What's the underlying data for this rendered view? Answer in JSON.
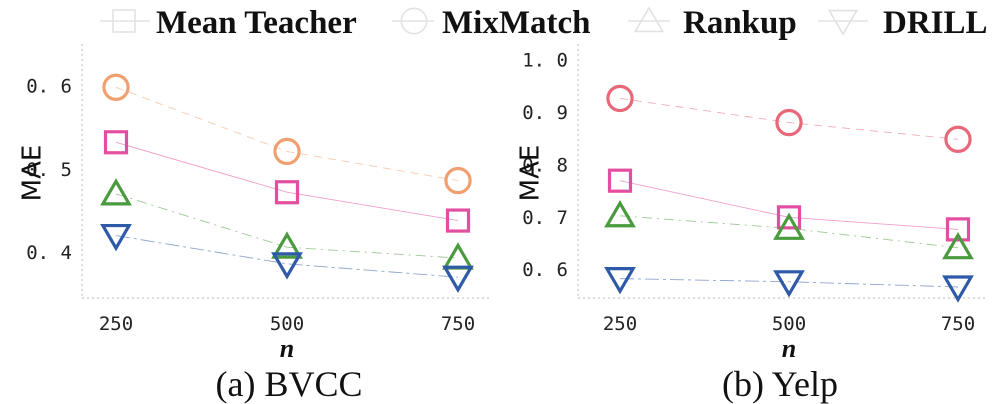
{
  "legend": [
    {
      "label": "Mean Teacher",
      "marker": "square"
    },
    {
      "label": "MixMatch",
      "marker": "circle"
    },
    {
      "label": "Rankup",
      "marker": "triangle-up"
    },
    {
      "label": "DRILL",
      "marker": "triangle-down"
    }
  ],
  "colors": {
    "Mean Teacher": "#e34fa0",
    "MixMatch": "#f0a070",
    "MixMatch_yelp": "#e8687a",
    "Rankup": "#4a9a3e",
    "DRILL": "#2f5aa8"
  },
  "chart_data": [
    {
      "type": "scatter",
      "caption": "(a) BVCC",
      "xlabel": "n",
      "ylabel": "MAE",
      "x": [
        250,
        500,
        750
      ],
      "ylim": [
        0.345,
        0.65
      ],
      "yticks": [
        "0.4",
        "0.5",
        "0.6"
      ],
      "xticks": [
        "250",
        "500",
        "750"
      ],
      "series": [
        {
          "name": "Mean Teacher",
          "marker": "square",
          "values": [
            0.532,
            0.472,
            0.438
          ]
        },
        {
          "name": "MixMatch",
          "marker": "circle",
          "values": [
            0.598,
            0.521,
            0.486
          ]
        },
        {
          "name": "Rankup",
          "marker": "triangle-up",
          "values": [
            0.47,
            0.406,
            0.393
          ]
        },
        {
          "name": "DRILL",
          "marker": "triangle-down",
          "values": [
            0.42,
            0.386,
            0.37
          ]
        }
      ]
    },
    {
      "type": "scatter",
      "caption": "(b) Yelp",
      "xlabel": "n",
      "ylabel": "MAE",
      "x": [
        250,
        500,
        750
      ],
      "ylim": [
        0.545,
        1.03
      ],
      "yticks": [
        "0.6",
        "0.7",
        "0.8",
        "0.9",
        "1.0"
      ],
      "xticks": [
        "250",
        "500",
        "750"
      ],
      "series": [
        {
          "name": "Mean Teacher",
          "marker": "square",
          "values": [
            0.769,
            0.699,
            0.676
          ]
        },
        {
          "name": "MixMatch",
          "marker": "circle",
          "values": [
            0.926,
            0.88,
            0.848
          ]
        },
        {
          "name": "Rankup",
          "marker": "triangle-up",
          "values": [
            0.702,
            0.678,
            0.641
          ]
        },
        {
          "name": "DRILL",
          "marker": "triangle-down",
          "values": [
            0.582,
            0.576,
            0.566
          ]
        }
      ]
    }
  ]
}
